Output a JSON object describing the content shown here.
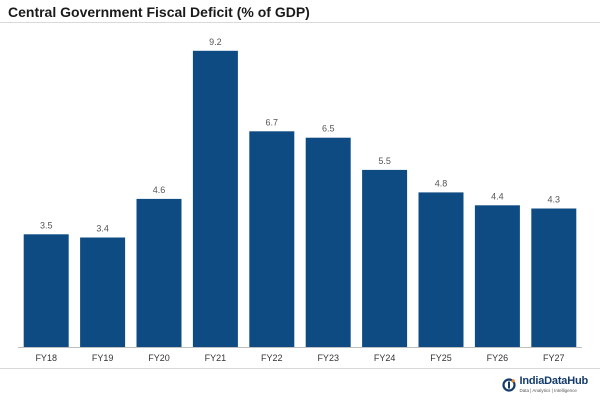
{
  "chart_data": {
    "type": "bar",
    "title": "Central Government Fiscal Deficit (% of GDP)",
    "categories": [
      "FY18",
      "FY19",
      "FY20",
      "FY21",
      "FY22",
      "FY23",
      "FY24",
      "FY25",
      "FY26",
      "FY27"
    ],
    "values": [
      3.5,
      3.4,
      4.6,
      9.2,
      6.7,
      6.5,
      5.5,
      4.8,
      4.4,
      4.3
    ],
    "value_labels": [
      "3.5",
      "3.4",
      "4.6",
      "9.2",
      "6.7",
      "6.5",
      "5.5",
      "4.8",
      "4.4",
      "4.3"
    ],
    "xlabel": "",
    "ylabel": "",
    "ylim": [
      0,
      10
    ],
    "grid": false,
    "bar_color": "#0e4b82",
    "axis_color": "#bfbfbf"
  },
  "brand": {
    "name": "IndiaDataHub",
    "tagline": "Data | Analytics | Intelligence",
    "color": "#143c6b",
    "icon": "indiadatahub-logo-icon"
  }
}
